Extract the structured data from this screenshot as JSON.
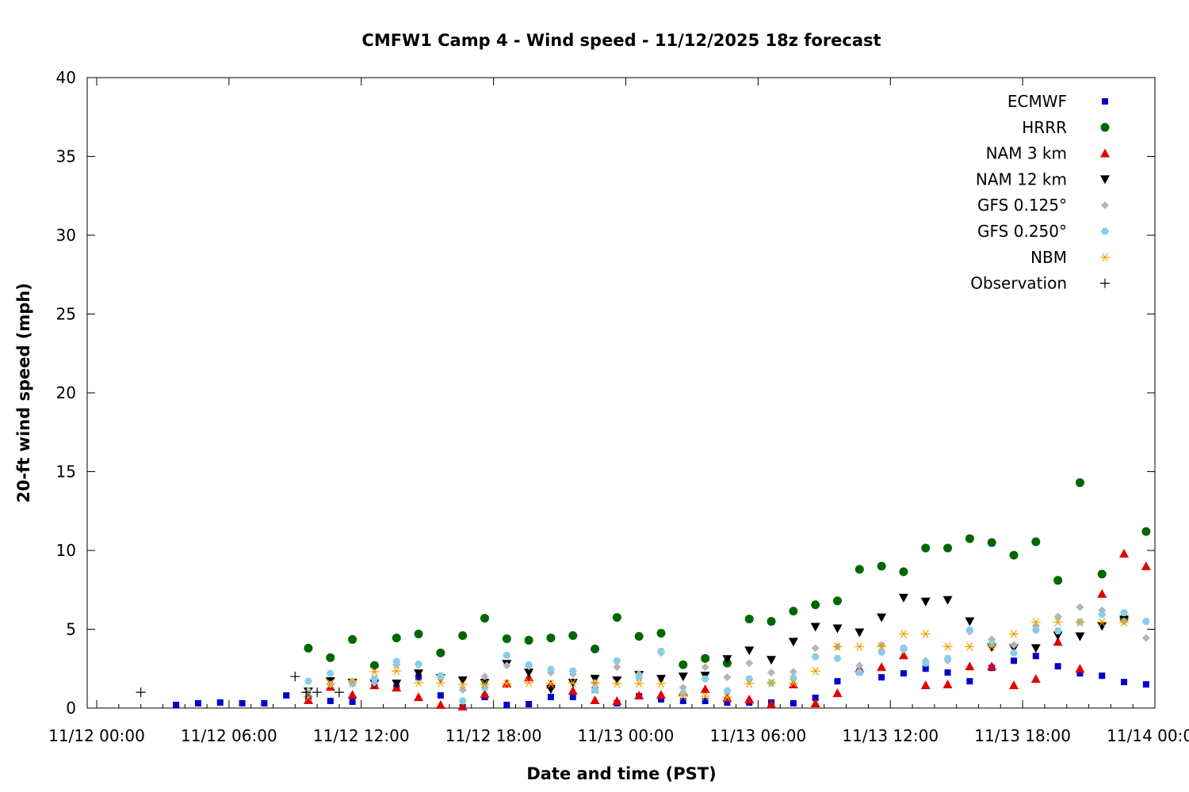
{
  "chart_data": {
    "type": "scatter",
    "title": "CMFW1 Camp 4 - Wind speed - 11/12/2025 18z forecast",
    "xlabel": "Date and time (PST)",
    "ylabel": "20-ft wind speed (mph)",
    "x_unit": "hours since 11/12 00:00 PST",
    "xlim": [
      0,
      48
    ],
    "ylim": [
      0,
      40
    ],
    "xticks": [
      {
        "x": 0,
        "label": "11/12 00:00"
      },
      {
        "x": 6,
        "label": "11/12 06:00"
      },
      {
        "x": 12,
        "label": "11/12 12:00"
      },
      {
        "x": 18,
        "label": "11/12 18:00"
      },
      {
        "x": 24,
        "label": "11/13 00:00"
      },
      {
        "x": 30,
        "label": "11/13 06:00"
      },
      {
        "x": 36,
        "label": "11/13 12:00"
      },
      {
        "x": 42,
        "label": "11/13 18:00"
      },
      {
        "x": 48,
        "label": "11/14 00:00"
      }
    ],
    "yticks": [
      0,
      5,
      10,
      15,
      20,
      25,
      30,
      35,
      40
    ],
    "grid": false,
    "legend_position": "top-right",
    "series": [
      {
        "name": "ECMWF",
        "marker": "square",
        "color": "#0000cc",
        "points": [
          [
            3.6,
            0.2
          ],
          [
            4.6,
            0.3
          ],
          [
            5.6,
            0.35
          ],
          [
            6.6,
            0.3
          ],
          [
            7.6,
            0.3
          ],
          [
            8.6,
            0.8
          ],
          [
            9.6,
            0.6
          ],
          [
            10.6,
            0.45
          ],
          [
            11.6,
            0.4
          ],
          [
            12.6,
            1.5
          ],
          [
            13.6,
            1.3
          ],
          [
            14.6,
            1.95
          ],
          [
            15.6,
            0.8
          ],
          [
            16.6,
            0.05
          ],
          [
            17.6,
            0.7
          ],
          [
            18.6,
            0.2
          ],
          [
            19.6,
            0.25
          ],
          [
            20.6,
            0.7
          ],
          [
            21.6,
            0.7
          ],
          [
            22.6,
            1.15
          ],
          [
            23.6,
            0.3
          ],
          [
            24.6,
            0.75
          ],
          [
            25.6,
            0.55
          ],
          [
            26.6,
            0.45
          ],
          [
            27.6,
            0.45
          ],
          [
            28.6,
            0.35
          ],
          [
            29.6,
            0.35
          ],
          [
            30.6,
            0.35
          ],
          [
            31.6,
            0.3
          ],
          [
            32.6,
            0.65
          ],
          [
            33.6,
            1.7
          ],
          [
            34.6,
            2.3
          ],
          [
            35.6,
            1.95
          ],
          [
            36.6,
            2.2
          ],
          [
            37.6,
            2.5
          ],
          [
            38.6,
            2.25
          ],
          [
            39.6,
            1.7
          ],
          [
            40.6,
            2.55
          ],
          [
            41.6,
            3.0
          ],
          [
            42.6,
            3.3
          ],
          [
            43.6,
            2.65
          ],
          [
            44.6,
            2.2
          ],
          [
            45.6,
            2.05
          ],
          [
            46.6,
            1.65
          ],
          [
            47.6,
            1.5
          ]
        ]
      },
      {
        "name": "HRRR",
        "marker": "circle",
        "color": "#006600",
        "points": [
          [
            9.6,
            3.8
          ],
          [
            10.6,
            3.2
          ],
          [
            11.6,
            4.35
          ],
          [
            12.6,
            2.7
          ],
          [
            13.6,
            4.45
          ],
          [
            14.6,
            4.7
          ],
          [
            15.6,
            3.5
          ],
          [
            16.6,
            4.6
          ],
          [
            17.6,
            5.7
          ],
          [
            18.6,
            4.4
          ],
          [
            19.6,
            4.3
          ],
          [
            20.6,
            4.45
          ],
          [
            21.6,
            4.6
          ],
          [
            22.6,
            3.75
          ],
          [
            23.6,
            5.75
          ],
          [
            24.6,
            4.55
          ],
          [
            25.6,
            4.75
          ],
          [
            26.6,
            2.75
          ],
          [
            27.6,
            3.15
          ],
          [
            28.6,
            2.85
          ],
          [
            29.6,
            5.65
          ],
          [
            30.6,
            5.5
          ],
          [
            31.6,
            6.15
          ],
          [
            32.6,
            6.55
          ],
          [
            33.6,
            6.8
          ],
          [
            34.6,
            8.8
          ],
          [
            35.6,
            9.0
          ],
          [
            36.6,
            8.65
          ],
          [
            37.6,
            10.15
          ],
          [
            38.6,
            10.15
          ],
          [
            39.6,
            10.75
          ],
          [
            40.6,
            10.5
          ],
          [
            41.6,
            9.7
          ],
          [
            42.6,
            10.55
          ],
          [
            43.6,
            8.1
          ],
          [
            44.6,
            14.3
          ],
          [
            45.6,
            8.5
          ],
          [
            46.6,
            5.7
          ],
          [
            47.6,
            11.2
          ]
        ]
      },
      {
        "name": "NAM 3 km",
        "marker": "triangle-up",
        "color": "#e00000",
        "points": [
          [
            9.6,
            0.5
          ],
          [
            10.6,
            1.35
          ],
          [
            11.6,
            0.85
          ],
          [
            12.6,
            1.45
          ],
          [
            13.6,
            1.3
          ],
          [
            14.6,
            0.7
          ],
          [
            15.6,
            0.2
          ],
          [
            16.6,
            0.1
          ],
          [
            17.6,
            0.9
          ],
          [
            18.6,
            1.55
          ],
          [
            19.6,
            1.95
          ],
          [
            20.6,
            1.5
          ],
          [
            21.6,
            1.1
          ],
          [
            22.6,
            0.5
          ],
          [
            23.6,
            0.45
          ],
          [
            24.6,
            0.8
          ],
          [
            25.6,
            0.85
          ],
          [
            26.6,
            1.05
          ],
          [
            27.6,
            1.2
          ],
          [
            28.6,
            0.65
          ],
          [
            29.6,
            0.55
          ],
          [
            30.6,
            0.25
          ],
          [
            31.6,
            1.5
          ],
          [
            32.6,
            0.3
          ],
          [
            33.6,
            0.95
          ],
          [
            34.6,
            2.5
          ],
          [
            35.6,
            2.6
          ],
          [
            36.6,
            3.35
          ],
          [
            37.6,
            1.45
          ],
          [
            38.6,
            1.5
          ],
          [
            39.6,
            2.65
          ],
          [
            40.6,
            2.65
          ],
          [
            41.6,
            1.45
          ],
          [
            42.6,
            1.85
          ],
          [
            43.6,
            4.2
          ],
          [
            44.6,
            2.5
          ],
          [
            45.6,
            7.25
          ],
          [
            46.6,
            9.8
          ],
          [
            47.6,
            9.0
          ]
        ]
      },
      {
        "name": "NAM 12 km",
        "marker": "triangle-down",
        "color": "#000000",
        "points": [
          [
            9.6,
            1.05
          ],
          [
            10.6,
            1.7
          ],
          [
            11.6,
            1.6
          ],
          [
            12.6,
            1.55
          ],
          [
            13.6,
            1.55
          ],
          [
            14.6,
            2.2
          ],
          [
            15.6,
            1.9
          ],
          [
            16.6,
            1.75
          ],
          [
            17.6,
            1.6
          ],
          [
            18.6,
            2.8
          ],
          [
            19.6,
            2.25
          ],
          [
            20.6,
            1.2
          ],
          [
            21.6,
            1.6
          ],
          [
            22.6,
            1.85
          ],
          [
            23.6,
            1.75
          ],
          [
            24.6,
            2.1
          ],
          [
            25.6,
            1.85
          ],
          [
            26.6,
            2.0
          ],
          [
            27.6,
            2.05
          ],
          [
            28.6,
            3.1
          ],
          [
            29.6,
            3.65
          ],
          [
            30.6,
            3.05
          ],
          [
            31.6,
            4.2
          ],
          [
            32.6,
            5.15
          ],
          [
            33.6,
            5.05
          ],
          [
            34.6,
            4.8
          ],
          [
            35.6,
            5.75
          ],
          [
            36.6,
            7.0
          ],
          [
            37.6,
            6.75
          ],
          [
            38.6,
            6.85
          ],
          [
            39.6,
            5.5
          ],
          [
            40.6,
            3.85
          ],
          [
            41.6,
            3.8
          ],
          [
            42.6,
            3.8
          ],
          [
            43.6,
            4.6
          ],
          [
            44.6,
            4.55
          ],
          [
            45.6,
            5.2
          ],
          [
            46.6,
            5.6
          ]
        ]
      },
      {
        "name": "GFS 0.125°",
        "marker": "diamond",
        "color": "#b4b4b4",
        "points": [
          [
            9.6,
            1.1
          ],
          [
            10.6,
            1.5
          ],
          [
            11.6,
            1.7
          ],
          [
            12.6,
            1.6
          ],
          [
            13.6,
            2.75
          ],
          [
            14.6,
            2.75
          ],
          [
            15.6,
            1.95
          ],
          [
            16.6,
            1.15
          ],
          [
            17.6,
            2.0
          ],
          [
            18.6,
            2.7
          ],
          [
            19.6,
            2.65
          ],
          [
            20.6,
            2.25
          ],
          [
            21.6,
            2.15
          ],
          [
            22.6,
            1.6
          ],
          [
            23.6,
            2.6
          ],
          [
            24.6,
            2.15
          ],
          [
            25.6,
            3.5
          ],
          [
            26.6,
            1.3
          ],
          [
            27.6,
            2.6
          ],
          [
            28.6,
            1.95
          ],
          [
            29.6,
            2.85
          ],
          [
            30.6,
            2.25
          ],
          [
            31.6,
            2.3
          ],
          [
            32.6,
            3.8
          ],
          [
            33.6,
            3.9
          ],
          [
            34.6,
            2.7
          ],
          [
            35.6,
            4.0
          ],
          [
            36.6,
            3.7
          ],
          [
            37.6,
            3.0
          ],
          [
            38.6,
            3.0
          ],
          [
            39.6,
            4.85
          ],
          [
            40.6,
            4.35
          ],
          [
            41.6,
            4.0
          ],
          [
            42.6,
            5.2
          ],
          [
            43.6,
            5.8
          ],
          [
            44.6,
            6.4
          ],
          [
            45.6,
            6.2
          ],
          [
            46.6,
            5.5
          ],
          [
            47.6,
            4.45
          ]
        ]
      },
      {
        "name": "GFS 0.250°",
        "marker": "hexagon",
        "color": "#87ceeb",
        "points": [
          [
            9.6,
            1.7
          ],
          [
            10.6,
            2.2
          ],
          [
            11.6,
            1.55
          ],
          [
            12.6,
            1.85
          ],
          [
            13.6,
            2.95
          ],
          [
            14.6,
            2.8
          ],
          [
            15.6,
            2.05
          ],
          [
            16.6,
            0.45
          ],
          [
            17.6,
            1.3
          ],
          [
            18.6,
            3.35
          ],
          [
            19.6,
            2.75
          ],
          [
            20.6,
            2.45
          ],
          [
            21.6,
            2.35
          ],
          [
            22.6,
            1.15
          ],
          [
            23.6,
            3.0
          ],
          [
            24.6,
            1.95
          ],
          [
            25.6,
            3.6
          ],
          [
            26.6,
            0.95
          ],
          [
            27.6,
            1.85
          ],
          [
            28.6,
            1.1
          ],
          [
            29.6,
            1.85
          ],
          [
            30.6,
            1.6
          ],
          [
            31.6,
            1.9
          ],
          [
            32.6,
            3.25
          ],
          [
            33.6,
            3.15
          ],
          [
            34.6,
            2.25
          ],
          [
            35.6,
            3.55
          ],
          [
            36.6,
            3.8
          ],
          [
            37.6,
            2.85
          ],
          [
            38.6,
            3.15
          ],
          [
            39.6,
            4.95
          ],
          [
            40.6,
            4.1
          ],
          [
            41.6,
            3.5
          ],
          [
            42.6,
            4.95
          ],
          [
            43.6,
            4.9
          ],
          [
            44.6,
            5.45
          ],
          [
            45.6,
            5.95
          ],
          [
            46.6,
            6.05
          ],
          [
            47.6,
            5.5
          ]
        ]
      },
      {
        "name": "NBM",
        "marker": "asterisk",
        "color": "#f0a000",
        "points": [
          [
            9.6,
            0.7
          ],
          [
            10.6,
            1.55
          ],
          [
            11.6,
            1.65
          ],
          [
            12.6,
            2.3
          ],
          [
            13.6,
            2.35
          ],
          [
            14.6,
            1.6
          ],
          [
            15.6,
            1.6
          ],
          [
            16.6,
            1.5
          ],
          [
            17.6,
            1.5
          ],
          [
            18.6,
            1.55
          ],
          [
            19.6,
            1.6
          ],
          [
            20.6,
            1.55
          ],
          [
            21.6,
            1.6
          ],
          [
            22.6,
            1.6
          ],
          [
            23.6,
            1.55
          ],
          [
            24.6,
            1.55
          ],
          [
            25.6,
            1.55
          ],
          [
            26.6,
            0.75
          ],
          [
            27.6,
            0.75
          ],
          [
            28.6,
            0.7
          ],
          [
            29.6,
            1.55
          ],
          [
            30.6,
            1.6
          ],
          [
            31.6,
            1.6
          ],
          [
            32.6,
            2.35
          ],
          [
            33.6,
            3.9
          ],
          [
            34.6,
            3.9
          ],
          [
            35.6,
            3.9
          ],
          [
            36.6,
            4.7
          ],
          [
            37.6,
            4.7
          ],
          [
            38.6,
            3.9
          ],
          [
            39.6,
            3.9
          ],
          [
            40.6,
            3.9
          ],
          [
            41.6,
            4.7
          ],
          [
            42.6,
            5.45
          ],
          [
            43.6,
            5.45
          ],
          [
            44.6,
            5.45
          ],
          [
            45.6,
            5.45
          ],
          [
            46.6,
            5.45
          ]
        ]
      },
      {
        "name": "Observation",
        "marker": "plus",
        "color": "#000000",
        "points": [
          [
            2.0,
            1.0
          ],
          [
            9.0,
            2.0
          ],
          [
            9.5,
            1.0
          ],
          [
            10.0,
            1.0
          ],
          [
            11.0,
            1.0
          ]
        ]
      }
    ]
  }
}
